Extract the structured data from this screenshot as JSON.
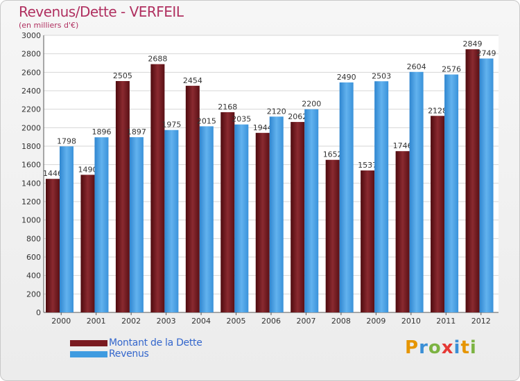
{
  "title": "Revenus/Dette - VERFEIL",
  "subtitle": "(en milliers d'€)",
  "colors": {
    "debt": "#7a1a20",
    "revenue": "#3f9be0"
  },
  "chart_data": {
    "type": "bar",
    "categories": [
      "2000",
      "2001",
      "2002",
      "2003",
      "2004",
      "2005",
      "2006",
      "2007",
      "2008",
      "2009",
      "2010",
      "2011",
      "2012"
    ],
    "series": [
      {
        "name": "Montant de la Dette",
        "values": [
          1446,
          1490,
          2505,
          2688,
          2454,
          2168,
          1944,
          2062,
          1652,
          1537,
          1746,
          2128,
          2849
        ]
      },
      {
        "name": "Revenus",
        "values": [
          1798,
          1896,
          1897,
          1975,
          2015,
          2035,
          2120,
          2200,
          2490,
          2503,
          2604,
          2576,
          2749
        ]
      }
    ],
    "ylim": [
      0,
      3000
    ],
    "yticks": [
      0,
      200,
      400,
      600,
      800,
      1000,
      1200,
      1400,
      1600,
      1800,
      2000,
      2200,
      2400,
      2600,
      2800,
      3000
    ],
    "grid": true,
    "legend": "bottom-left"
  },
  "logo": {
    "letters": [
      "P",
      "r",
      "o",
      "x",
      "i",
      "t",
      "i"
    ],
    "colors": [
      "#e69500",
      "#3a8fd6",
      "#7cb342",
      "#e53935",
      "#3a8fd6",
      "#e69500",
      "#7cb342"
    ]
  }
}
